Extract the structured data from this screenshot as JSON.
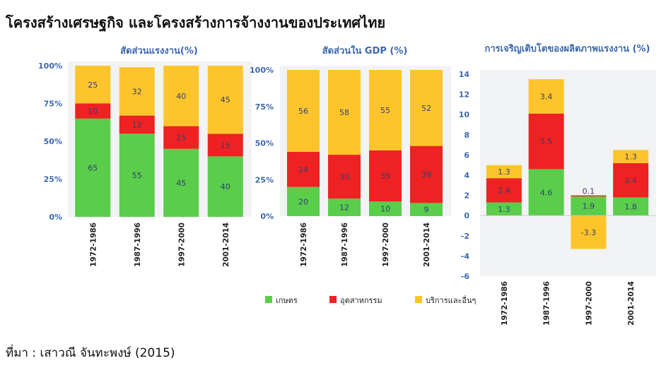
{
  "page": {
    "title": "โครงสร้างเศรษฐกิจ และโครงสร้างการจ้างงานของประเทศไทย",
    "source": "ที่มา : เสาวณี จันทะพงษ์ (2015)"
  },
  "colors": {
    "agriculture": "#5acd4b",
    "industry": "#ee2222",
    "services": "#fdc52b",
    "axis_text": "#3c68b0"
  },
  "legend": {
    "placement": "bottom",
    "items": [
      {
        "label": "เกษตร",
        "color": "#5acd4b"
      },
      {
        "label": "อุตสาหกรรม",
        "color": "#ee2222"
      },
      {
        "label": "บริการและอื่นๆ",
        "color": "#fdc52b"
      }
    ]
  },
  "chart_data": [
    {
      "type": "bar",
      "stacked": true,
      "title": "สัดส่วนแรงงาน(%)",
      "categories": [
        "1972-1986",
        "1987-1996",
        "1997-2000",
        "2001-2014"
      ],
      "y_ticks": [
        "0%",
        "25%",
        "50%",
        "75%",
        "100%"
      ],
      "ylim": [
        0,
        100
      ],
      "series": [
        {
          "name": "เกษตร",
          "values": [
            65,
            55,
            45,
            40
          ]
        },
        {
          "name": "อุตสาหกรรม",
          "values": [
            10,
            12,
            15,
            15
          ]
        },
        {
          "name": "บริการและอื่นๆ",
          "values": [
            25,
            32,
            40,
            45
          ]
        }
      ]
    },
    {
      "type": "bar",
      "stacked": true,
      "title": "สัดส่วนใน GDP (%)",
      "categories": [
        "1972-1986",
        "1987-1996",
        "1997-2000",
        "2001-2014"
      ],
      "y_ticks": [
        "0%",
        "25%",
        "50%",
        "75%",
        "100%"
      ],
      "ylim": [
        0,
        100
      ],
      "series": [
        {
          "name": "เกษตร",
          "values": [
            20,
            12,
            10,
            9
          ]
        },
        {
          "name": "อุตสาหกรรม",
          "values": [
            24,
            30,
            35,
            39
          ]
        },
        {
          "name": "บริการและอื่นๆ",
          "values": [
            56,
            58,
            55,
            52
          ]
        }
      ]
    },
    {
      "type": "bar",
      "stacked": true,
      "title": "การเจริญเติบโตของผลิตภาพแรงงาน (%)",
      "categories": [
        "1972-1986",
        "1987-1996",
        "1997-2000",
        "2001-2014"
      ],
      "y_ticks": [
        "-6",
        "-4",
        "-2",
        "0",
        "2",
        "4",
        "6",
        "8",
        "10",
        "12",
        "14"
      ],
      "ylim": [
        -6,
        14
      ],
      "series": [
        {
          "name": "เกษตร",
          "values": [
            1.3,
            4.6,
            1.9,
            1.8
          ]
        },
        {
          "name": "อุตสาหกรรม",
          "values": [
            2.4,
            5.5,
            0.1,
            3.4
          ]
        },
        {
          "name": "บริการและอื่นๆ",
          "values": [
            1.3,
            3.4,
            -3.3,
            1.3
          ]
        }
      ]
    }
  ]
}
